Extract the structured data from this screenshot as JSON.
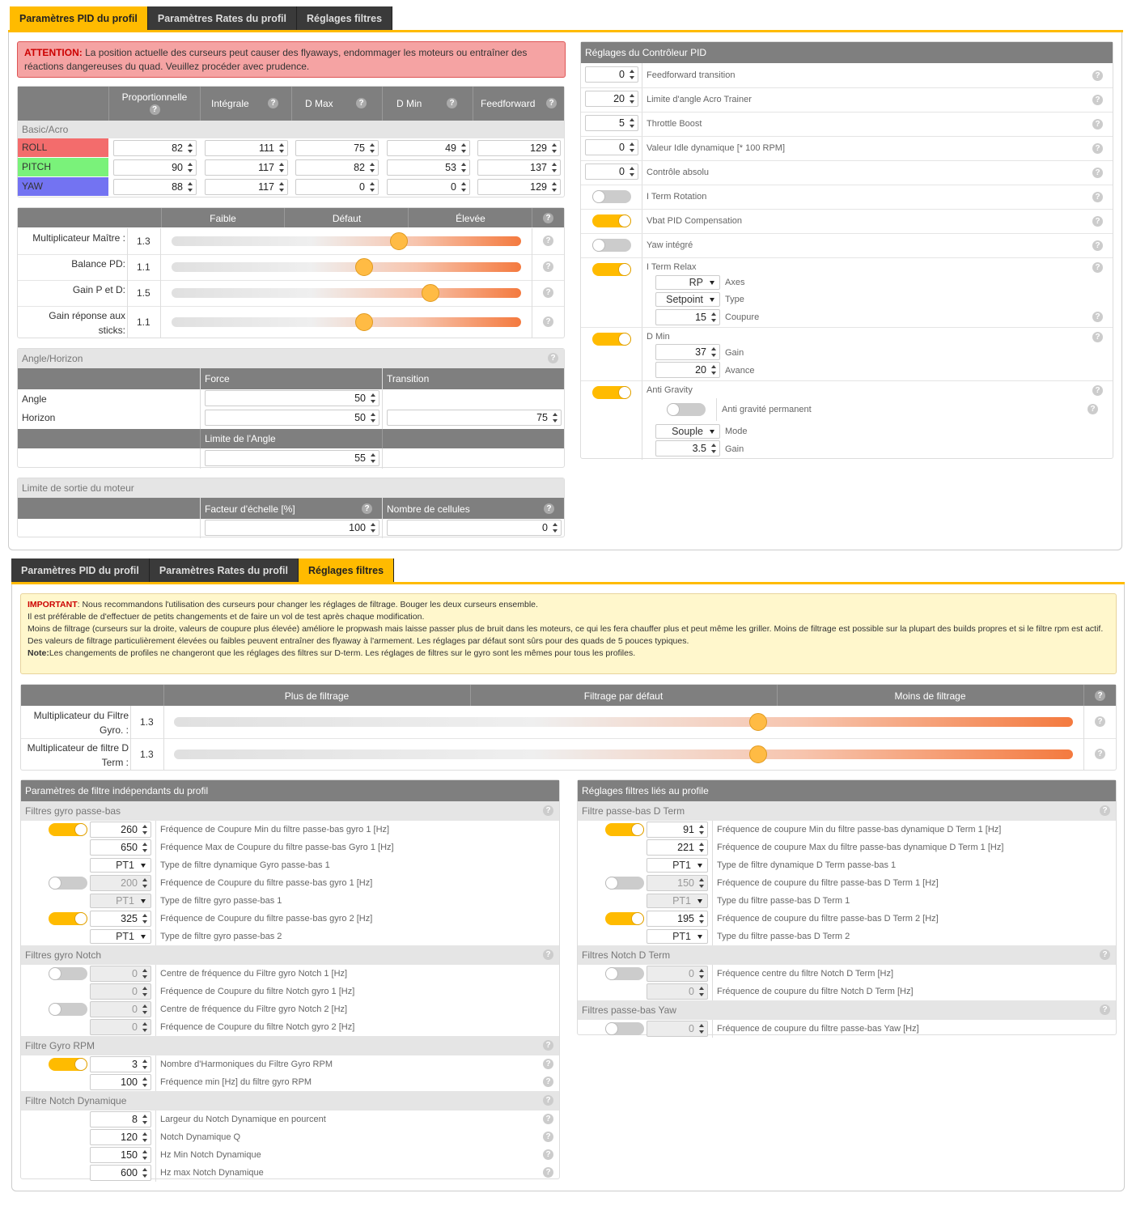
{
  "tabs": [
    "Paramètres PID du profil",
    "Paramètres Rates du profil",
    "Réglages filtres"
  ],
  "pid": {
    "alert_head": "ATTENTION:",
    "alert_text": " La position actuelle des curseurs peut causer des flyaways, endommager les moteurs ou entraîner des réactions dangereuses du quad. Veuillez procéder avec prudence.",
    "cols": [
      "Proportionnelle",
      "Intégrale",
      "D Max",
      "D Min",
      "Feedforward"
    ],
    "section": "Basic/Acro",
    "axes": [
      {
        "name": "ROLL",
        "vals": [
          "82",
          "111",
          "75",
          "49",
          "129"
        ]
      },
      {
        "name": "PITCH",
        "vals": [
          "90",
          "117",
          "82",
          "53",
          "137"
        ]
      },
      {
        "name": "YAW",
        "vals": [
          "88",
          "117",
          "0",
          "0",
          "129"
        ]
      }
    ],
    "slider_cols": [
      "Faible",
      "Défaut",
      "Élevée"
    ],
    "sliders": [
      {
        "label": "Multiplicateur Maître :",
        "value": "1.3",
        "pos": 0.65
      },
      {
        "label": "Balance PD:",
        "value": "1.1",
        "pos": 0.55
      },
      {
        "label": "Gain P et D:",
        "value": "1.5",
        "pos": 0.74
      },
      {
        "label": "Gain réponse aux sticks:",
        "value": "1.1",
        "pos": 0.55
      }
    ],
    "angle": {
      "title": "Angle/Horizon",
      "force": "Force",
      "transition": "Transition",
      "angle": "Angle",
      "horizon": "Horizon",
      "angle_val": "50",
      "horizon_val": "50",
      "trans_val": "75",
      "limit_label": "Limite de l'Angle",
      "limit_val": "55"
    },
    "motor": {
      "title": "Limite de sortie du moteur",
      "scale": "Facteur d'échelle [%]",
      "cells": "Nombre de cellules",
      "scale_val": "100",
      "cells_val": "0"
    },
    "ctrl": {
      "title": "Réglages du Contrôleur PID",
      "rows": [
        {
          "v": "0",
          "l": "Feedforward transition"
        },
        {
          "v": "20",
          "l": "Limite d'angle Acro Trainer"
        },
        {
          "v": "5",
          "l": "Throttle Boost"
        },
        {
          "v": "0",
          "l": "Valeur Idle dynamique [* 100 RPM]"
        },
        {
          "v": "0",
          "l": "Contrôle absolu"
        }
      ],
      "toggles": [
        {
          "on": false,
          "l": "I Term Rotation"
        },
        {
          "on": true,
          "l": "Vbat PID Compensation"
        },
        {
          "on": false,
          "l": "Yaw intégré"
        }
      ],
      "relax": {
        "l": "I Term Relax",
        "axes": "RP",
        "axes_l": "Axes",
        "type": "Setpoint",
        "type_l": "Type",
        "cut": "15",
        "cut_l": "Coupure"
      },
      "dmin": {
        "l": "D Min",
        "gain": "37",
        "gain_l": "Gain",
        "adv": "20",
        "adv_l": "Avance"
      },
      "ag": {
        "l": "Anti Gravity",
        "perm": "Anti gravité permanent",
        "mode": "Souple",
        "mode_l": "Mode",
        "gain": "3.5",
        "gain_l": "Gain"
      }
    }
  },
  "filters": {
    "warn_head": "IMPORTANT",
    "warn_lines": [
      ": Nous recommandons l'utilisation des curseurs pour changer les réglages de filtrage. Bouger les deux curseurs ensemble.",
      "Il est préférable de d'effectuer de petits changements et de faire un vol de test après chaque modification.",
      "Moins de filtrage (curseurs sur la droite, valeurs de coupure plus élevée) améliore le propwash mais laisse passer plus de bruit dans les moteurs, ce qui les fera chauffer plus et peut même les griller. Moins de filtrage est possible sur la plupart des builds propres et si le filtre rpm est actif.",
      "Des valeurs de filtrage particulièrement élevées ou faibles peuvent entraîner des flyaway à l'armement. Les réglages par défaut sont sûrs pour des quads de 5 pouces typiques."
    ],
    "note_head": "Note:",
    "note_text": "Les changements de profiles ne changeront que les réglages des filtres sur D-term. Les réglages de filtres sur le gyro sont les mêmes pour tous les profiles.",
    "slider_cols": [
      "Plus de filtrage",
      "Filtrage par défaut",
      "Moins de filtrage"
    ],
    "sliders": [
      {
        "label": "Multiplicateur du Filtre Gyro. :",
        "value": "1.3",
        "pos": 0.65
      },
      {
        "label": "Multiplicateur de filtre D Term :",
        "value": "1.3",
        "pos": 0.65
      }
    ],
    "left_title": "Paramètres de filtre indépendants du profil",
    "right_title": "Réglages filtres liés au profile",
    "left": [
      {
        "h": "Filtres gyro passe-bas"
      },
      {
        "t": "on",
        "v": "260",
        "l": "Fréquence de Coupure Min du filtre passe-bas gyro 1 [Hz]"
      },
      {
        "v": "650",
        "l": "Fréquence Max de Coupure du filtre passe-bas Gyro 1 [Hz]"
      },
      {
        "s": "PT1",
        "l": "Type de filtre dynamique Gyro passe-bas 1"
      },
      {
        "t": "off",
        "v": "200",
        "d": true,
        "l": "Fréquence de Coupure du filtre passe-bas gyro 1 [Hz]"
      },
      {
        "s": "PT1",
        "d": true,
        "l": "Type de filtre gyro passe-bas 1"
      },
      {
        "t": "on",
        "v": "325",
        "l": "Fréquence de Coupure du filtre passe-bas gyro 2 [Hz]"
      },
      {
        "s": "PT1",
        "l": "Type de filtre gyro passe-bas 2"
      },
      {
        "h": "Filtres gyro Notch"
      },
      {
        "t": "off",
        "v": "0",
        "d": true,
        "l": "Centre de fréquence du Filtre gyro Notch 1 [Hz]"
      },
      {
        "v": "0",
        "d": true,
        "l": "Fréquence de Coupure du filtre Notch gyro 1 [Hz]"
      },
      {
        "t": "off",
        "v": "0",
        "d": true,
        "l": "Centre de fréquence du Filtre gyro Notch 2 [Hz]"
      },
      {
        "v": "0",
        "d": true,
        "l": "Fréquence de Coupure du filtre Notch gyro 2 [Hz]"
      },
      {
        "h": "Filtre Gyro RPM"
      },
      {
        "t": "on",
        "v": "3",
        "l": "Nombre d'Harmoniques du Filtre Gyro RPM",
        "q": true
      },
      {
        "v": "100",
        "l": "Fréquence min [Hz] du filtre gyro RPM",
        "q": true
      },
      {
        "h": "Filtre Notch Dynamique"
      },
      {
        "v": "8",
        "l": "Largeur du Notch Dynamique en pourcent",
        "q": true
      },
      {
        "v": "120",
        "l": "Notch Dynamique Q",
        "q": true
      },
      {
        "v": "150",
        "l": "Hz Min Notch Dynamique",
        "q": true
      },
      {
        "v": "600",
        "l": "Hz max Notch Dynamique",
        "q": true
      }
    ],
    "right": [
      {
        "h": "Filtre passe-bas D Term"
      },
      {
        "t": "on",
        "v": "91",
        "l": "Fréquence de coupure Min du filtre passe-bas dynamique D Term 1 [Hz]"
      },
      {
        "v": "221",
        "l": "Fréquence de coupure Max du filtre passe-bas dynamique D Term 1 [Hz]"
      },
      {
        "s": "PT1",
        "l": "Type de filtre dynamique D Term passe-bas 1"
      },
      {
        "t": "off",
        "v": "150",
        "d": true,
        "l": "Fréquence de coupure du filtre passe-bas D Term 1 [Hz]"
      },
      {
        "s": "PT1",
        "d": true,
        "l": "Type du filtre passe-bas D Term 1"
      },
      {
        "t": "on",
        "v": "195",
        "l": "Fréquence de coupure du filtre passe-bas D Term 2 [Hz]"
      },
      {
        "s": "PT1",
        "l": "Type du filtre passe-bas D Term 2"
      },
      {
        "h": "Filtres Notch D Term"
      },
      {
        "t": "off",
        "v": "0",
        "d": true,
        "l": "Fréquence centre du filtre Notch D Term [Hz]"
      },
      {
        "v": "0",
        "d": true,
        "l": "Fréquence de coupure du filtre Notch D Term [Hz]"
      },
      {
        "h": "Filtres passe-bas Yaw"
      },
      {
        "t": "off",
        "v": "0",
        "d": true,
        "l": "Fréquence de coupure du filtre passe-bas Yaw [Hz]"
      }
    ]
  },
  "colors": {
    "accent": "#ffbb00",
    "roll": "#f36c6c",
    "pitch": "#7af27a",
    "yaw": "#7373f2"
  }
}
